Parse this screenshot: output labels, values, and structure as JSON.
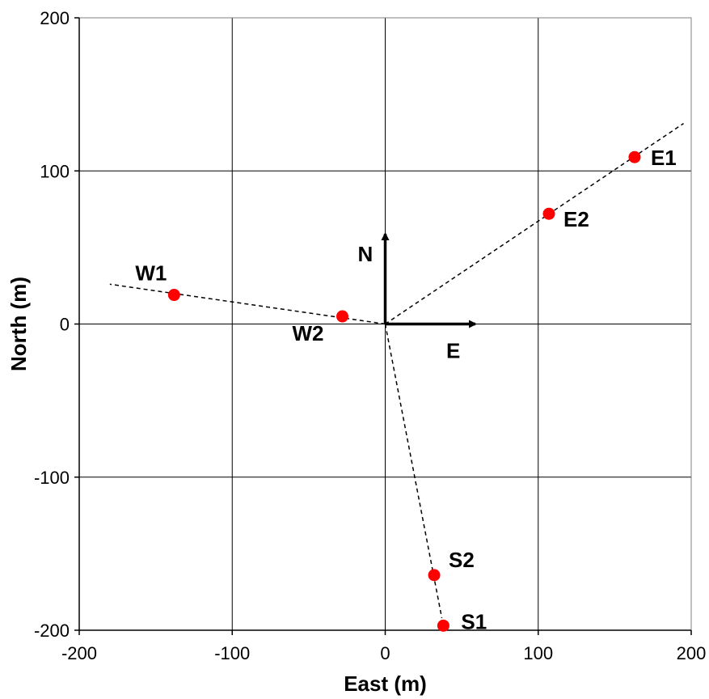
{
  "chart_data": {
    "type": "scatter",
    "title": "",
    "xlabel": "East (m)",
    "ylabel": "North (m)",
    "xlim": [
      -200,
      200
    ],
    "ylim": [
      -200,
      200
    ],
    "x_ticks": [
      -200,
      -100,
      0,
      100,
      200
    ],
    "y_ticks": [
      -200,
      -100,
      0,
      100,
      200
    ],
    "x_tick_labels": [
      "-200",
      "-100",
      "0",
      "100",
      "200"
    ],
    "y_tick_labels": [
      "-200",
      "-100",
      "0",
      "100",
      "200"
    ],
    "grid": true,
    "point_color": "#ff0000",
    "points": [
      {
        "label": "E1",
        "x": 163,
        "y": 109
      },
      {
        "label": "E2",
        "x": 107,
        "y": 72
      },
      {
        "label": "W1",
        "x": -138,
        "y": 19
      },
      {
        "label": "W2",
        "x": -28,
        "y": 5
      },
      {
        "label": "S2",
        "x": 32,
        "y": -164
      },
      {
        "label": "S1",
        "x": 38,
        "y": -197
      }
    ],
    "dashed_lines": [
      {
        "from": [
          0,
          0
        ],
        "to": [
          195,
          131
        ]
      },
      {
        "from": [
          0,
          0
        ],
        "to": [
          -180,
          26
        ]
      },
      {
        "from": [
          0,
          0
        ],
        "to": [
          37,
          -192
        ]
      }
    ],
    "compass": {
      "north_label": "N",
      "east_label": "E",
      "north_tip": [
        0,
        60
      ],
      "east_tip": [
        60,
        0
      ]
    }
  }
}
